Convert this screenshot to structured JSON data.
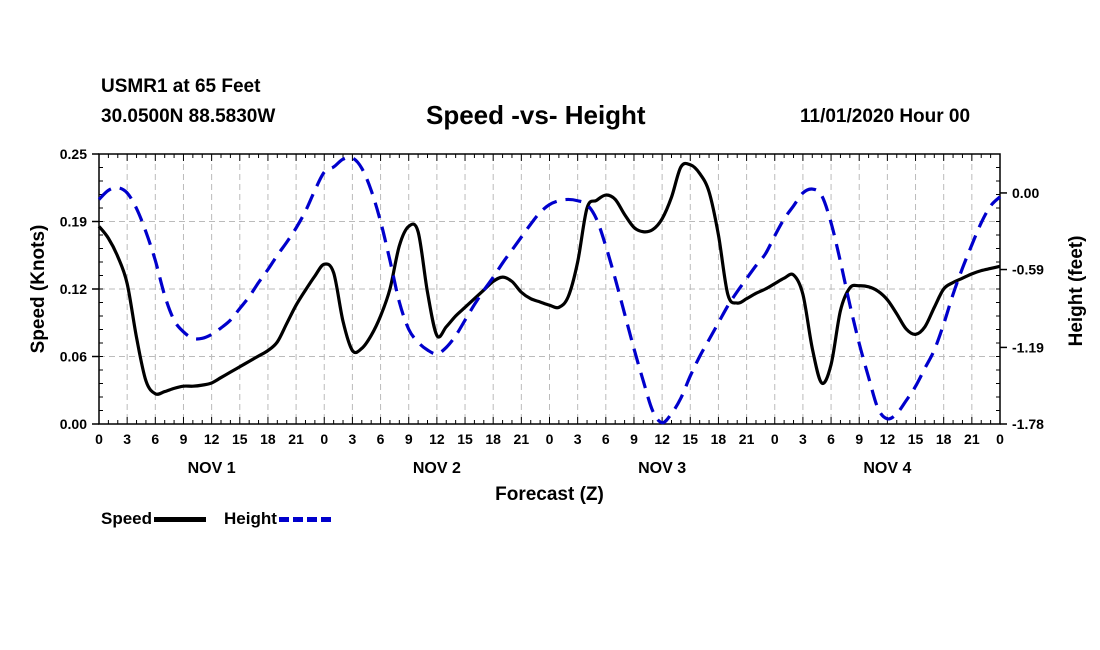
{
  "header": {
    "station": "USMR1 at 65 Feet",
    "coords": "30.0500N 88.5830W",
    "title": "Speed -vs- Height",
    "date": "11/01/2020 Hour 00"
  },
  "legend": {
    "speed_label": "Speed",
    "height_label": "Height"
  },
  "chart_data": {
    "type": "line",
    "title": "Speed -vs- Height",
    "xlabel": "Forecast (Z)",
    "ylabel": "Speed (Knots)",
    "y2label": "Height (feet)",
    "xlim": [
      0,
      96
    ],
    "x_tick_labels": [
      "0",
      "3",
      "6",
      "9",
      "12",
      "15",
      "18",
      "21",
      "0",
      "3",
      "6",
      "9",
      "12",
      "15",
      "18",
      "21",
      "0",
      "3",
      "6",
      "9",
      "12",
      "15",
      "18",
      "21",
      "0",
      "3",
      "6",
      "9",
      "12",
      "15",
      "18",
      "21",
      "0"
    ],
    "day_labels": [
      "NOV 1",
      "NOV 2",
      "NOV 3",
      "NOV 4"
    ],
    "ylim": [
      0.0,
      0.25
    ],
    "y_ticks": [
      "0.00",
      "0.06",
      "0.12",
      "0.19",
      "0.25"
    ],
    "y2lim": [
      -1.78,
      0.3
    ],
    "y2_ticks": [
      "0.00",
      "-0.59",
      "-1.19",
      "-1.78"
    ],
    "grid": true,
    "colors": {
      "speed": "#000000",
      "height": "#0000cc",
      "grid": "#bbbbbb"
    },
    "series": [
      {
        "name": "Speed",
        "axis": "left",
        "x": [
          0,
          1,
          2,
          3,
          4,
          5,
          6,
          7,
          8,
          9,
          10,
          11,
          12,
          13,
          14,
          15,
          16,
          17,
          18,
          19,
          20,
          21,
          22,
          23,
          24,
          25,
          26,
          27,
          28,
          29,
          30,
          31,
          32,
          33,
          34,
          35,
          36,
          37,
          38,
          39,
          40,
          41,
          42,
          43,
          44,
          45,
          46,
          47,
          48,
          49,
          50,
          51,
          52,
          53,
          54,
          55,
          56,
          57,
          58,
          59,
          60,
          61,
          62,
          63,
          64,
          65,
          66,
          67,
          68,
          69,
          70,
          71,
          72,
          73,
          74,
          75,
          76,
          77,
          78,
          79,
          80,
          81,
          82,
          83,
          84,
          85,
          86,
          87,
          88,
          89,
          90,
          91,
          92,
          93,
          94,
          95,
          96
        ],
        "values": [
          0.183,
          0.172,
          0.155,
          0.13,
          0.08,
          0.04,
          0.028,
          0.03,
          0.033,
          0.035,
          0.035,
          0.036,
          0.038,
          0.043,
          0.048,
          0.053,
          0.058,
          0.063,
          0.068,
          0.076,
          0.093,
          0.11,
          0.124,
          0.137,
          0.148,
          0.14,
          0.095,
          0.068,
          0.07,
          0.082,
          0.1,
          0.125,
          0.165,
          0.183,
          0.178,
          0.122,
          0.082,
          0.09,
          0.1,
          0.108,
          0.116,
          0.124,
          0.132,
          0.136,
          0.132,
          0.122,
          0.116,
          0.113,
          0.11,
          0.108,
          0.118,
          0.15,
          0.2,
          0.207,
          0.212,
          0.208,
          0.194,
          0.182,
          0.178,
          0.18,
          0.19,
          0.21,
          0.238,
          0.24,
          0.232,
          0.215,
          0.175,
          0.12,
          0.112,
          0.116,
          0.121,
          0.125,
          0.13,
          0.135,
          0.138,
          0.12,
          0.07,
          0.038,
          0.055,
          0.105,
          0.126,
          0.128,
          0.127,
          0.123,
          0.115,
          0.102,
          0.088,
          0.083,
          0.09,
          0.108,
          0.125,
          0.131,
          0.135,
          0.139,
          0.142,
          0.144,
          0.146
        ]
      },
      {
        "name": "Height",
        "axis": "right",
        "x": [
          0,
          1,
          2,
          3,
          4,
          5,
          6,
          7,
          8,
          9,
          10,
          11,
          12,
          13,
          14,
          15,
          16,
          17,
          18,
          19,
          20,
          21,
          22,
          23,
          24,
          25,
          26,
          27,
          28,
          29,
          30,
          31,
          32,
          33,
          34,
          35,
          36,
          37,
          38,
          39,
          40,
          41,
          42,
          43,
          44,
          45,
          46,
          47,
          48,
          49,
          50,
          51,
          52,
          53,
          54,
          55,
          56,
          57,
          58,
          59,
          60,
          61,
          62,
          63,
          64,
          65,
          66,
          67,
          68,
          69,
          70,
          71,
          72,
          73,
          74,
          75,
          76,
          77,
          78,
          79,
          80,
          81,
          82,
          83,
          84,
          85,
          86,
          87,
          88,
          89,
          90,
          91,
          92,
          93,
          94,
          95,
          96
        ],
        "values": [
          -0.05,
          0.02,
          0.04,
          0.0,
          -0.12,
          -0.3,
          -0.52,
          -0.79,
          -0.98,
          -1.07,
          -1.12,
          -1.12,
          -1.09,
          -1.04,
          -0.98,
          -0.89,
          -0.8,
          -0.69,
          -0.59,
          -0.48,
          -0.38,
          -0.27,
          -0.14,
          0.02,
          0.16,
          0.2,
          0.26,
          0.27,
          0.19,
          0.02,
          -0.22,
          -0.52,
          -0.84,
          -1.05,
          -1.15,
          -1.21,
          -1.24,
          -1.19,
          -1.1,
          -0.98,
          -0.86,
          -0.75,
          -0.65,
          -0.54,
          -0.44,
          -0.34,
          -0.24,
          -0.15,
          -0.09,
          -0.06,
          -0.05,
          -0.06,
          -0.09,
          -0.2,
          -0.41,
          -0.66,
          -0.93,
          -1.2,
          -1.45,
          -1.68,
          -1.77,
          -1.7,
          -1.58,
          -1.41,
          -1.26,
          -1.13,
          -1.0,
          -0.87,
          -0.76,
          -0.66,
          -0.56,
          -0.47,
          -0.33,
          -0.2,
          -0.1,
          0.0,
          0.03,
          -0.02,
          -0.23,
          -0.53,
          -0.86,
          -1.16,
          -1.42,
          -1.66,
          -1.74,
          -1.7,
          -1.6,
          -1.49,
          -1.35,
          -1.21,
          -1.01,
          -0.78,
          -0.58,
          -0.4,
          -0.23,
          -0.1,
          -0.03
        ]
      }
    ]
  }
}
